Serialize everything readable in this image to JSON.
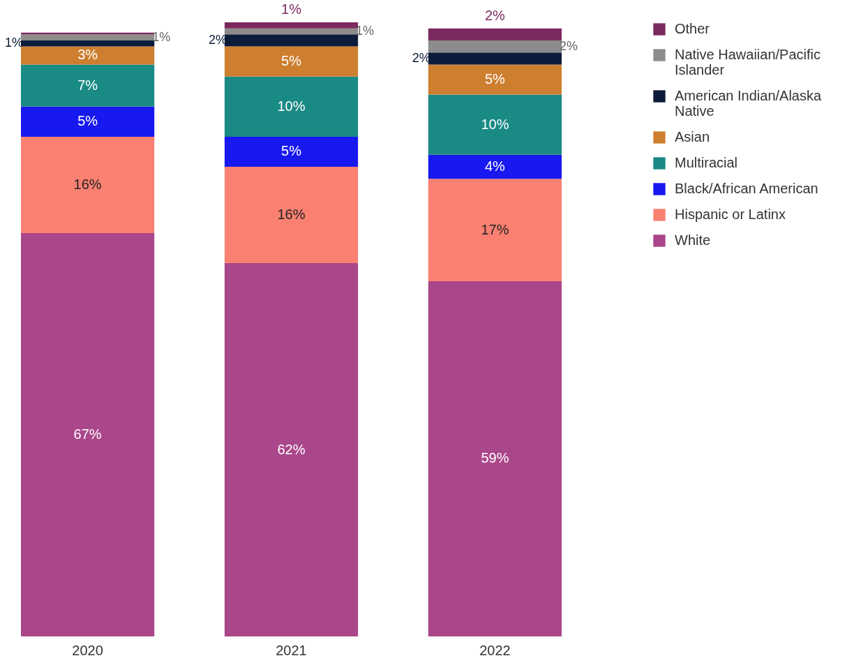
{
  "chart_data": {
    "type": "bar",
    "stacked": true,
    "categories": [
      "2020",
      "2021",
      "2022"
    ],
    "legend": "top right",
    "series": [
      {
        "name": "White",
        "color": "#aa468a",
        "values": [
          67,
          62,
          59
        ],
        "value_labels": [
          "67%",
          "62%",
          "59%"
        ]
      },
      {
        "name": "Hispanic or Latinx",
        "color": "#fa8072",
        "values": [
          16,
          16,
          17
        ],
        "value_labels": [
          "16%",
          "16%",
          "17%"
        ]
      },
      {
        "name": "Black/African American",
        "color": "#1818f0",
        "values": [
          5,
          5,
          4
        ],
        "value_labels": [
          "5%",
          "5%",
          "4%"
        ]
      },
      {
        "name": "Multiracial",
        "color": "#1a8a85",
        "values": [
          7,
          10,
          10
        ],
        "value_labels": [
          "7%",
          "10%",
          "10%"
        ]
      },
      {
        "name": "Asian",
        "color": "#cd7f2f",
        "values": [
          3,
          5,
          5
        ],
        "value_labels": [
          "3%",
          "5%",
          "5%"
        ]
      },
      {
        "name": "American Indian/Alaska Native",
        "color": "#0d1b3a",
        "values": [
          1,
          2,
          2
        ],
        "value_labels": [
          "1%",
          "2%",
          "2%"
        ]
      },
      {
        "name": "Native Hawaiian/Pacific Islander",
        "color": "#8c8c8c",
        "values": [
          1,
          1,
          2
        ],
        "value_labels": [
          "1%",
          "1%",
          "2%"
        ]
      },
      {
        "name": "Other",
        "color": "#7b2a5f",
        "values": [
          0.3,
          1,
          2
        ],
        "value_labels": [
          null,
          "1%",
          "2%"
        ]
      }
    ]
  }
}
